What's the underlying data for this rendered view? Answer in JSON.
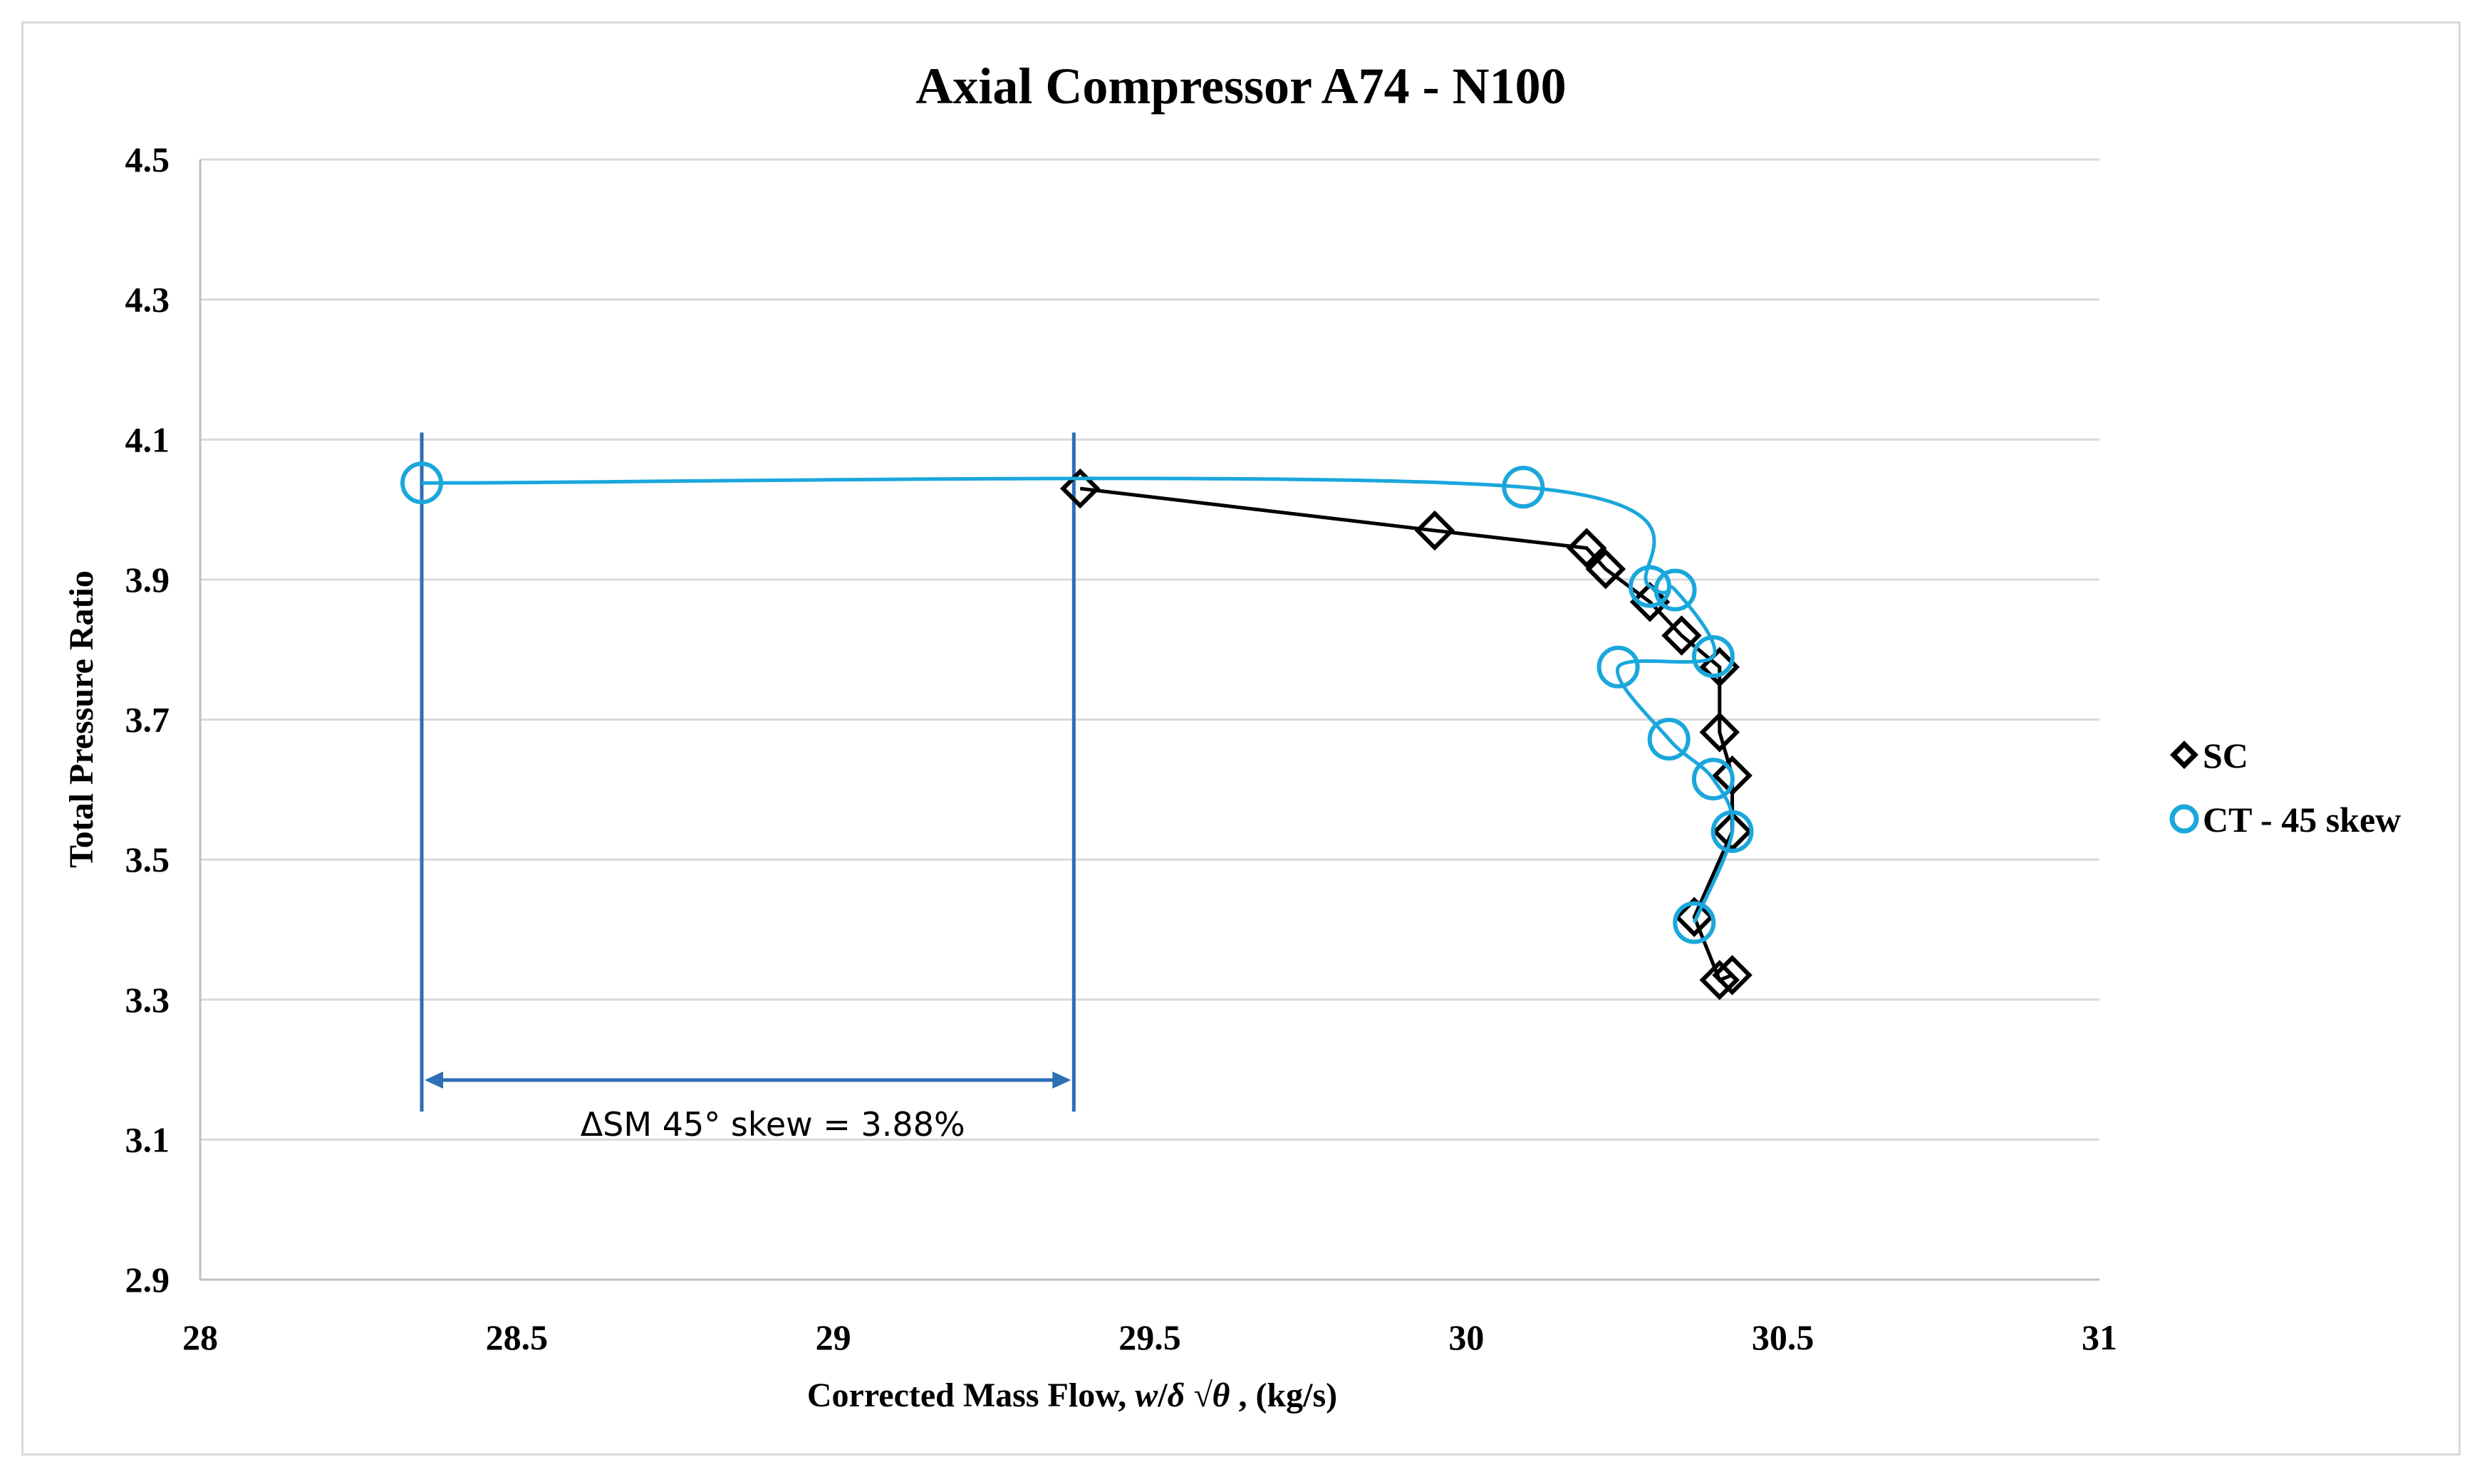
{
  "chart_data": {
    "type": "line",
    "title": "Axial Compressor A74 - N100",
    "xlabel": "Corrected Mass Flow, w/δ √θ , (kg/s)",
    "xlabel_parts": {
      "prefix": "Corrected Mass Flow, ",
      "w": "w",
      "slash": "/",
      "delta": "δ",
      "sqrt_theta": " √θ",
      "suffix": " , (kg/s)"
    },
    "ylabel": "Total Pressure Ratio",
    "xlim": [
      28,
      31
    ],
    "ylim": [
      2.9,
      4.5
    ],
    "x_ticks": [
      "28",
      "28.5",
      "29",
      "29.5",
      "30",
      "30.5",
      "31"
    ],
    "y_ticks": [
      "4.5",
      "4.3",
      "4.1",
      "3.9",
      "3.7",
      "3.5",
      "3.3",
      "3.1",
      "2.9"
    ],
    "grid": true,
    "legend_position": "right",
    "series": [
      {
        "name": "SC",
        "marker": "diamond",
        "color": "#000000",
        "points": [
          [
            29.39,
            4.03
          ],
          [
            29.95,
            3.97
          ],
          [
            30.19,
            3.945
          ],
          [
            30.22,
            3.915
          ],
          [
            30.29,
            3.868
          ],
          [
            30.34,
            3.82
          ],
          [
            30.4,
            3.775
          ],
          [
            30.4,
            3.682
          ],
          [
            30.42,
            3.62
          ],
          [
            30.42,
            3.54
          ],
          [
            30.36,
            3.418
          ],
          [
            30.4,
            3.328
          ],
          [
            30.42,
            3.335
          ]
        ]
      },
      {
        "name": "CT - 45 skew",
        "marker": "circle",
        "color": "#1aa7dc",
        "points": [
          [
            28.35,
            4.038
          ],
          [
            30.09,
            4.032
          ],
          [
            30.29,
            3.89
          ],
          [
            30.33,
            3.885
          ],
          [
            30.39,
            3.79
          ],
          [
            30.24,
            3.775
          ],
          [
            30.32,
            3.672
          ],
          [
            30.39,
            3.615
          ],
          [
            30.42,
            3.54
          ],
          [
            30.36,
            3.41
          ]
        ]
      }
    ],
    "annotation": {
      "text": "ΔSM 45° skew = 3.88%",
      "color": "#2e6fb5",
      "from_x": 28.35,
      "to_x": 29.38,
      "arrow_y": 3.185
    }
  }
}
